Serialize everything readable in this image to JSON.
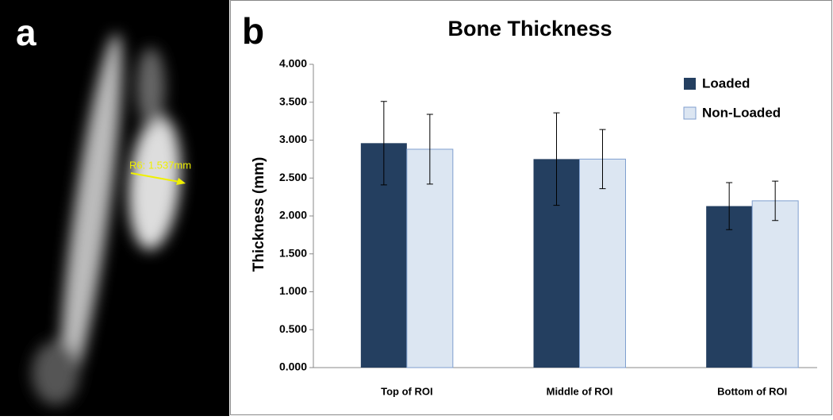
{
  "panel_a": {
    "label": "a",
    "annotation": "R6: 1.537mm"
  },
  "panel_b": {
    "label": "b"
  },
  "chart_data": {
    "type": "bar",
    "title": "Bone Thickness",
    "y_label": "Thickness (mm)",
    "categories": [
      "Top of ROI",
      "Middle of ROI",
      "Bottom of ROI"
    ],
    "series": [
      {
        "name": "Loaded",
        "color": "#243f60",
        "values": [
          2.96,
          2.75,
          2.13
        ],
        "errors": [
          0.55,
          0.61,
          0.31
        ]
      },
      {
        "name": "Non-Loaded",
        "color": "#dce6f2",
        "values": [
          2.88,
          2.75,
          2.2
        ],
        "errors": [
          0.46,
          0.39,
          0.26
        ]
      }
    ],
    "ylim": [
      0,
      4
    ],
    "yticks": [
      {
        "value": 0,
        "label": "0.000"
      },
      {
        "value": 0.5,
        "label": "0.500"
      },
      {
        "value": 1,
        "label": "1.000"
      },
      {
        "value": 1.5,
        "label": "1.500"
      },
      {
        "value": 2,
        "label": "2.000"
      },
      {
        "value": 2.5,
        "label": "2.500"
      },
      {
        "value": 3,
        "label": "3.000"
      },
      {
        "value": 3.5,
        "label": "3.500"
      },
      {
        "value": 4,
        "label": "4.000"
      }
    ],
    "grid": false,
    "legend": "top-right"
  }
}
